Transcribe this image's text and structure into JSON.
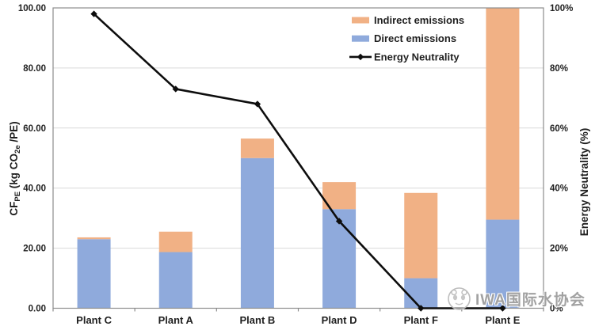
{
  "watermark": {
    "text": "IWA国际水协会"
  },
  "chart_data": {
    "type": "bar",
    "subtype": "stacked-bars-with-line",
    "title": "",
    "categories": [
      "Plant C",
      "Plant A",
      "Plant B",
      "Plant D",
      "Plant F",
      "Plant E"
    ],
    "bar_series": [
      {
        "name": "Direct emissions",
        "color": "#8faadc",
        "values": [
          23.0,
          18.7,
          50.0,
          33.0,
          10.0,
          29.5
        ]
      },
      {
        "name": "Indirect emissions",
        "color": "#f1b185",
        "values": [
          0.6,
          6.8,
          6.5,
          9.0,
          28.4,
          70.5
        ]
      }
    ],
    "line_series": {
      "name": "Energy Neutrality",
      "color": "#0d0d0d",
      "marker": "diamond",
      "values": [
        98,
        73,
        68,
        29,
        0,
        0
      ]
    },
    "axes": {
      "left": {
        "label_segments": [
          {
            "text": "CF"
          },
          {
            "text": "PE",
            "sub": true
          },
          {
            "text": " (kg CO"
          },
          {
            "text": "2e",
            "sub": true
          },
          {
            "text": " /PE)"
          }
        ],
        "range": [
          0,
          100
        ],
        "ticks": [
          {
            "v": 0,
            "label": "0.00"
          },
          {
            "v": 20,
            "label": "20.00"
          },
          {
            "v": 40,
            "label": "40.00"
          },
          {
            "v": 60,
            "label": "60.00"
          },
          {
            "v": 80,
            "label": "80.00"
          },
          {
            "v": 100,
            "label": "100.00"
          }
        ]
      },
      "right": {
        "label": "Energy Neutrality (%)",
        "range": [
          0,
          100
        ],
        "ticks": [
          {
            "v": 0,
            "label": "0%"
          },
          {
            "v": 20,
            "label": "20%"
          },
          {
            "v": 40,
            "label": "40%"
          },
          {
            "v": 60,
            "label": "60%"
          },
          {
            "v": 80,
            "label": "80%"
          },
          {
            "v": 100,
            "label": "100%"
          }
        ]
      }
    },
    "legend": {
      "position": "top-right-inside",
      "items": [
        {
          "label": "Indirect emissions",
          "swatch": "#f1b185",
          "glyph": "box"
        },
        {
          "label": "Direct emissions",
          "swatch": "#8faadc",
          "glyph": "box"
        },
        {
          "label": "Energy Neutrality",
          "swatch": "#0d0d0d",
          "glyph": "line-diamond"
        }
      ]
    },
    "grid": {
      "horizontal": true,
      "color": "#d9d9d9"
    },
    "frame_color": "#8c8c8c",
    "background": "#ffffff"
  }
}
